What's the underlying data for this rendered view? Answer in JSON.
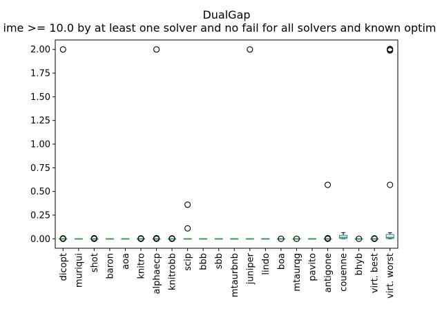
{
  "chart_data": {
    "type": "box",
    "title": "DualGap",
    "subtitle": "ime >= 10.0 by at least one solver and no fail for all solvers and known optim",
    "ylim": [
      -0.1,
      2.1
    ],
    "yticks": [
      "0.00",
      "0.25",
      "0.50",
      "0.75",
      "1.00",
      "1.25",
      "1.50",
      "1.75",
      "2.00"
    ],
    "categories": [
      "dicopt",
      "muriqui",
      "shot",
      "baron",
      "aoa",
      "knitro",
      "alphaecp",
      "knitrobb",
      "scip",
      "bbb",
      "sbb",
      "mtaurbnb",
      "juniper",
      "lindo",
      "boa",
      "mtaurqg",
      "pavito",
      "antigone",
      "couenne",
      "bhyb",
      "virt. best",
      "virt. worst"
    ],
    "boxes": [
      {
        "q1": 0,
        "median": 0,
        "q3": 0,
        "whislo": 0,
        "whishi": 0,
        "fliers": [
          0,
          0.002,
          0.004,
          2.0
        ]
      },
      {
        "q1": 0,
        "median": 0,
        "q3": 0,
        "whislo": 0,
        "whishi": 0,
        "fliers": []
      },
      {
        "q1": 0,
        "median": 0,
        "q3": 0,
        "whislo": 0,
        "whishi": 0,
        "fliers": [
          0,
          0.002,
          0.004,
          0.006
        ]
      },
      {
        "q1": 0,
        "median": 0,
        "q3": 0,
        "whislo": 0,
        "whishi": 0,
        "fliers": []
      },
      {
        "q1": 0,
        "median": 0,
        "q3": 0,
        "whislo": 0,
        "whishi": 0,
        "fliers": []
      },
      {
        "q1": 0,
        "median": 0,
        "q3": 0,
        "whislo": 0,
        "whishi": 0,
        "fliers": [
          0,
          0.002,
          0.004
        ]
      },
      {
        "q1": 0,
        "median": 0,
        "q3": 0,
        "whislo": 0,
        "whishi": 0,
        "fliers": [
          0,
          0.002,
          0.004,
          0.006,
          2.0
        ]
      },
      {
        "q1": 0,
        "median": 0,
        "q3": 0,
        "whislo": 0,
        "whishi": 0,
        "fliers": [
          0,
          0.002,
          0.004
        ]
      },
      {
        "q1": 0,
        "median": 0,
        "q3": 0,
        "whislo": 0,
        "whishi": 0,
        "fliers": [
          0.11,
          0.36
        ]
      },
      {
        "q1": 0,
        "median": 0,
        "q3": 0,
        "whislo": 0,
        "whishi": 0,
        "fliers": []
      },
      {
        "q1": 0,
        "median": 0,
        "q3": 0,
        "whislo": 0,
        "whishi": 0,
        "fliers": []
      },
      {
        "q1": 0,
        "median": 0,
        "q3": 0,
        "whislo": 0,
        "whishi": 0,
        "fliers": []
      },
      {
        "q1": 0,
        "median": 0,
        "q3": 0,
        "whislo": 0,
        "whishi": 0,
        "fliers": [
          2.0
        ]
      },
      {
        "q1": 0,
        "median": 0,
        "q3": 0,
        "whislo": 0,
        "whishi": 0,
        "fliers": []
      },
      {
        "q1": 0,
        "median": 0,
        "q3": 0,
        "whislo": 0,
        "whishi": 0,
        "fliers": [
          0
        ]
      },
      {
        "q1": 0,
        "median": 0,
        "q3": 0,
        "whislo": 0,
        "whishi": 0,
        "fliers": [
          0
        ]
      },
      {
        "q1": 0,
        "median": 0,
        "q3": 0,
        "whislo": 0,
        "whishi": 0,
        "fliers": []
      },
      {
        "q1": 0,
        "median": 0,
        "q3": 0,
        "whislo": 0,
        "whishi": 0,
        "fliers": [
          0,
          0.002,
          0.004,
          0.006,
          0.57
        ]
      },
      {
        "q1": 0.003,
        "median": 0.015,
        "q3": 0.037,
        "whislo": 0,
        "whishi": 0.065,
        "fliers": []
      },
      {
        "q1": 0,
        "median": 0,
        "q3": 0,
        "whislo": 0,
        "whishi": 0,
        "fliers": [
          0
        ]
      },
      {
        "q1": 0,
        "median": 0,
        "q3": 0,
        "whislo": 0,
        "whishi": 0,
        "fliers": [
          0,
          0.004
        ]
      },
      {
        "q1": 0.004,
        "median": 0.015,
        "q3": 0.045,
        "whislo": 0,
        "whishi": 0.065,
        "fliers": [
          0.57,
          1.99,
          2.0,
          2.005
        ]
      }
    ],
    "colors": {
      "box": "#1f77b4",
      "median": "#2ca02c",
      "whisker": "#000000",
      "flier": "#000000"
    },
    "grid": false
  }
}
